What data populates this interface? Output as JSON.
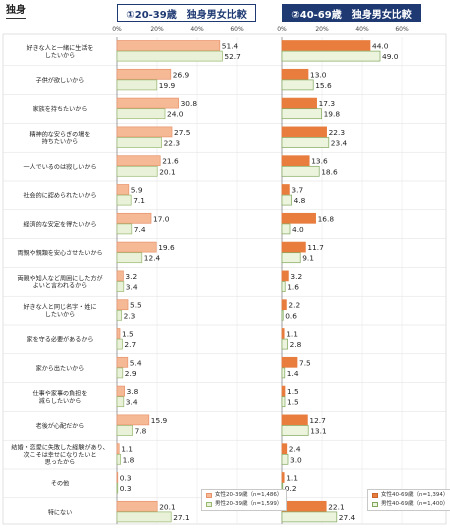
{
  "page": {
    "title": "独身"
  },
  "colors": {
    "female": "#f5b995",
    "female_stroke": "#e8936c",
    "male": "#e9f2d8",
    "male_stroke": "#97b86f",
    "female_dark": "#e87d3e",
    "male_dark": "#edf4de",
    "male_dark_stroke": "#7fa75a",
    "header": "#1f3a73"
  },
  "chart_data": [
    {
      "type": "bar",
      "title": "①20-39歳　独身男女比較",
      "xlim": [
        0,
        70
      ],
      "ticks": [
        "0%",
        "20%",
        "40%",
        "60%"
      ],
      "categories": [
        "好きな人と一緒に生活を\nしたいから",
        "子供が欲しいから",
        "家族を持ちたいから",
        "精神的な安らぎの場を\n持ちたいから",
        "一人でいるのは寂しいから",
        "社会的に認められたいから",
        "経済的な安定を得たいから",
        "両親や親類を安心させたいから",
        "両親や知人など周囲にした方が\nよいと言われるから",
        "好きな人と同じ名字・姓に\nしたいから",
        "家を守る必要があるから",
        "家から出たいから",
        "仕事や家事の負担を\n減らしたいから",
        "老後が心配だから",
        "結婚・恋愛に失敗した経験があり、\n次こそは幸せになりたいと\n思ったから",
        "その他",
        "特にない"
      ],
      "series": [
        {
          "name": "女性20-39歳（n=1,486）",
          "values": [
            51.4,
            26.9,
            30.8,
            27.5,
            21.6,
            5.9,
            17.0,
            19.6,
            3.2,
            5.5,
            1.5,
            5.4,
            3.8,
            15.9,
            1.1,
            0.3,
            20.1
          ]
        },
        {
          "name": "男性20-39歳（n=1,599）",
          "values": [
            52.7,
            19.9,
            24.0,
            22.3,
            20.1,
            7.1,
            7.4,
            12.4,
            3.4,
            2.3,
            2.7,
            2.9,
            3.4,
            7.8,
            1.8,
            0.3,
            27.1
          ]
        }
      ]
    },
    {
      "type": "bar",
      "title": "②40-69歳　独身男女比較",
      "xlim": [
        0,
        70
      ],
      "ticks": [
        "0%",
        "20%",
        "40%",
        "60%"
      ],
      "series": [
        {
          "name": "女性40-69歳（n=1,394）",
          "values": [
            44.0,
            13.0,
            17.3,
            22.3,
            13.6,
            3.7,
            16.8,
            11.7,
            3.2,
            2.2,
            1.1,
            7.5,
            1.5,
            12.7,
            2.4,
            1.1,
            22.1
          ]
        },
        {
          "name": "男性40-69歳（n=1,400）",
          "values": [
            49.0,
            15.6,
            19.8,
            23.4,
            18.6,
            4.8,
            4.0,
            9.1,
            1.6,
            0.6,
            2.8,
            1.4,
            1.5,
            13.1,
            3.0,
            0.2,
            27.4
          ]
        }
      ]
    }
  ]
}
